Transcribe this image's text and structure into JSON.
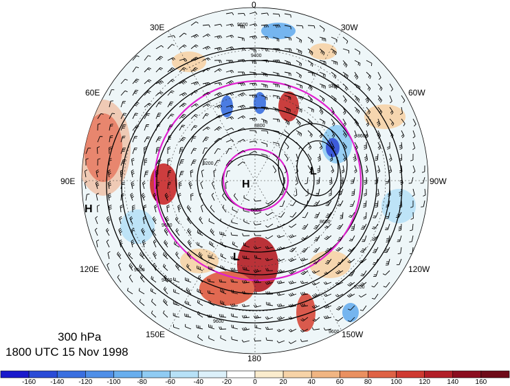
{
  "title": {
    "level": "300 hPa",
    "time": "1800 UTC 15 Nov 1998"
  },
  "longitude_labels": [
    "0",
    "30W",
    "60W",
    "90W",
    "120W",
    "150W",
    "180",
    "150E",
    "120E",
    "90E",
    "60E",
    "30E"
  ],
  "pressure_centers": [
    {
      "type": "H",
      "note": "near pole"
    },
    {
      "type": "L",
      "note": "over Canada"
    },
    {
      "type": "L",
      "note": "Pacific"
    },
    {
      "type": "H",
      "note": "outside disk left"
    }
  ],
  "contour_labels": [
    "9600",
    "9400",
    "9200",
    "9000",
    "8800",
    "8600",
    "8400"
  ],
  "colorbar": {
    "ticks": [
      "-160",
      "-140",
      "-120",
      "-100",
      "-80",
      "-60",
      "-40",
      "-20",
      "0",
      "20",
      "40",
      "60",
      "80",
      "100",
      "120",
      "140",
      "160"
    ],
    "colors": [
      "#1a1acc",
      "#2a4bd7",
      "#3a6fe0",
      "#4f8fe8",
      "#68aeee",
      "#8fcbf3",
      "#b7e1f7",
      "#dcf0fa",
      "#ffffff",
      "#fbeccd",
      "#f7d3a7",
      "#f1b582",
      "#ea9060",
      "#df6245",
      "#cf3a31",
      "#b21f28",
      "#8b0d1f"
    ]
  }
}
